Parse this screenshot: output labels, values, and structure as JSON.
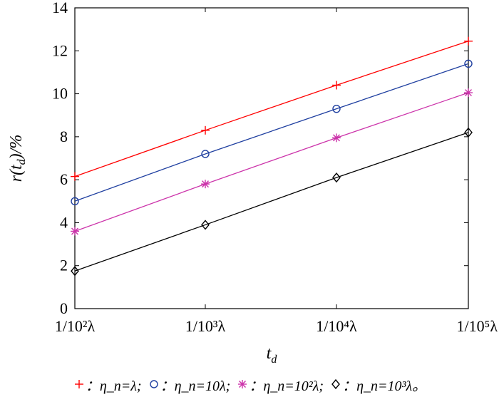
{
  "chart_data": {
    "type": "line",
    "categories": [
      "1/10²λ",
      "1/10³λ",
      "1/10⁴λ",
      "1/10⁵λ"
    ],
    "xlabel": "t_d",
    "ylabel": "r(t_d)/%",
    "ylim": [
      0,
      14
    ],
    "yticks": [
      0,
      2,
      4,
      6,
      8,
      10,
      12,
      14
    ],
    "grid": false,
    "legend_position": "bottom",
    "series": [
      {
        "name": "：η_n=λ;",
        "marker": "plus",
        "color": "#ff0000",
        "values": [
          6.15,
          8.3,
          10.4,
          12.45
        ]
      },
      {
        "name": "：η_n=10λ;",
        "marker": "circle",
        "color": "#1f3fa0",
        "values": [
          5.0,
          7.2,
          9.3,
          11.4
        ]
      },
      {
        "name": "：η_n=10²λ;",
        "marker": "asterisk",
        "color": "#cc33aa",
        "values": [
          3.6,
          5.8,
          7.95,
          10.05
        ]
      },
      {
        "name": "：η_n=10³λ。",
        "marker": "diamond",
        "color": "#000000",
        "values": [
          1.75,
          3.9,
          6.1,
          8.2
        ]
      }
    ]
  }
}
